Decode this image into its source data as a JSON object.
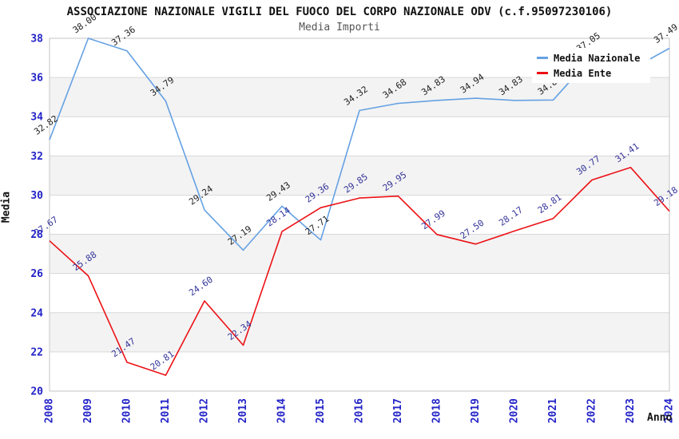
{
  "chart_data": {
    "type": "line",
    "title": "ASSOCIAZIONE NAZIONALE VIGILI DEL FUOCO DEL CORPO NAZIONALE ODV (c.f.95097230106)",
    "subtitle": "Media Importi",
    "xlabel": "Anno",
    "ylabel": "Media",
    "categories": [
      "2008",
      "2009",
      "2010",
      "2011",
      "2012",
      "2013",
      "2014",
      "2015",
      "2016",
      "2017",
      "2018",
      "2019",
      "2020",
      "2021",
      "2022",
      "2023",
      "2024"
    ],
    "ylim": [
      20,
      38
    ],
    "y_ticks": [
      20,
      22,
      24,
      26,
      28,
      30,
      32,
      34,
      36,
      38
    ],
    "grid": "horizontal gridlines with alternating gray bands every 2 units",
    "legend_position": "top-right",
    "axis_tick_color": "#2323C8",
    "band_color": "#f3f3f3",
    "gridline_color": "#d9d9d9",
    "plot_border_color": "#c4c4c4",
    "series": [
      {
        "name": "Media Nazionale",
        "color": "#65A1E3",
        "label_color": "#1f1f1f",
        "values": [
          32.82,
          38.0,
          37.36,
          34.79,
          29.24,
          27.19,
          29.43,
          27.71,
          34.32,
          34.68,
          34.83,
          34.94,
          34.83,
          34.85,
          37.05,
          36.4,
          37.49
        ],
        "point_labels": [
          "32.82",
          "38.00",
          "37.36",
          "34.79",
          "29.24",
          "27.19",
          "29.43",
          "27.71",
          "34.32",
          "34.68",
          "34.83",
          "34.94",
          "34.83",
          "34.85",
          "37.05",
          "",
          "37.49"
        ]
      },
      {
        "name": "Media Ente",
        "color": "#EC1115",
        "label_color": "#333399",
        "values": [
          27.67,
          25.88,
          21.47,
          20.81,
          24.6,
          22.34,
          28.14,
          29.36,
          29.85,
          29.95,
          27.99,
          27.5,
          28.17,
          28.81,
          30.77,
          31.41,
          29.18
        ],
        "point_labels": [
          "27.67",
          "25.88",
          "21.47",
          "20.81",
          "24.60",
          "22.34",
          "28.14",
          "29.36",
          "29.85",
          "29.95",
          "27.99",
          "27.50",
          "28.17",
          "28.81",
          "30.77",
          "31.41",
          "29.18"
        ]
      }
    ]
  }
}
